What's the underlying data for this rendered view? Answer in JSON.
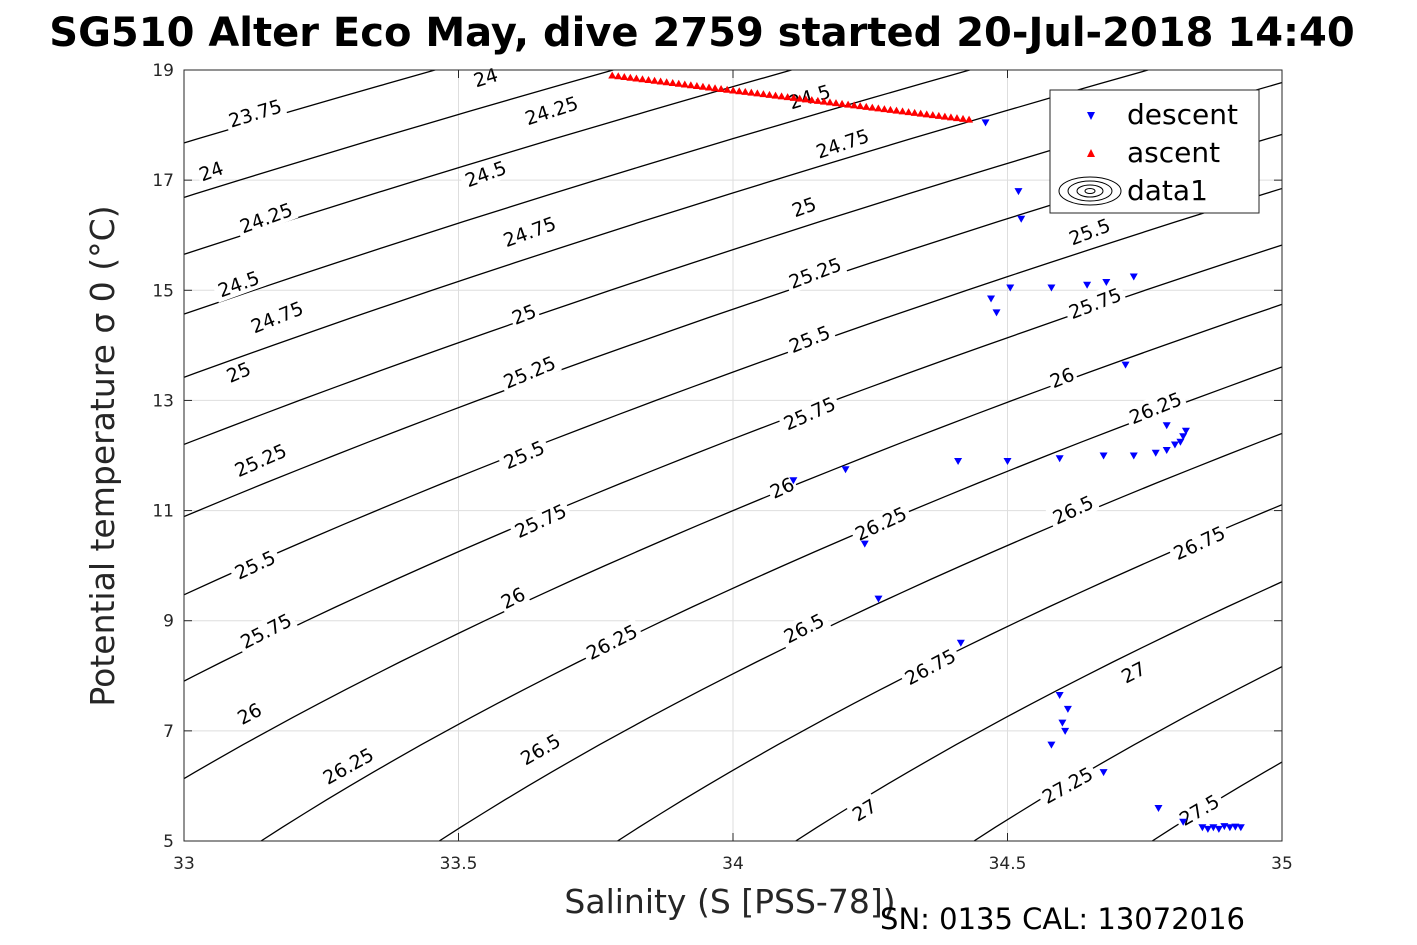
{
  "figure": {
    "title": "SG510 Alter Eco May, dive 2759 started 20-Jul-2018 14:40",
    "footer": "SN: 0135  CAL: 13072016"
  },
  "chart_data": {
    "type": "scatter",
    "title": "SG510 Alter Eco May, dive 2759 started 20-Jul-2018 14:40",
    "xlabel": "Salinity (S [PSS-78])",
    "ylabel": "Potential temperature σ 0 (°C)",
    "xlim": [
      33,
      35
    ],
    "ylim": [
      5,
      19
    ],
    "xticks": [
      33,
      33.5,
      34,
      34.5,
      35
    ],
    "yticks": [
      5,
      7,
      9,
      11,
      13,
      15,
      17,
      19
    ],
    "grid": true,
    "legend_position": "top-right",
    "legend": [
      "descent",
      "ascent",
      "data1"
    ],
    "series": [
      {
        "name": "descent",
        "marker": "triangle-down",
        "color": "#0000ff",
        "points": [
          [
            34.46,
            18.05
          ],
          [
            34.52,
            16.8
          ],
          [
            34.525,
            16.3
          ],
          [
            34.47,
            14.85
          ],
          [
            34.48,
            14.6
          ],
          [
            34.505,
            15.05
          ],
          [
            34.58,
            15.05
          ],
          [
            34.645,
            15.1
          ],
          [
            34.68,
            15.15
          ],
          [
            34.73,
            15.25
          ],
          [
            34.715,
            13.65
          ],
          [
            34.79,
            12.55
          ],
          [
            34.82,
            12.35
          ],
          [
            34.825,
            12.45
          ],
          [
            34.815,
            12.25
          ],
          [
            34.805,
            12.2
          ],
          [
            34.79,
            12.1
          ],
          [
            34.77,
            12.05
          ],
          [
            34.73,
            12.0
          ],
          [
            34.675,
            12.0
          ],
          [
            34.595,
            11.95
          ],
          [
            34.5,
            11.9
          ],
          [
            34.41,
            11.9
          ],
          [
            34.205,
            11.75
          ],
          [
            34.11,
            11.55
          ],
          [
            34.24,
            10.4
          ],
          [
            34.265,
            9.4
          ],
          [
            34.415,
            8.6
          ],
          [
            34.595,
            7.65
          ],
          [
            34.61,
            7.4
          ],
          [
            34.6,
            7.15
          ],
          [
            34.605,
            7.0
          ],
          [
            34.58,
            6.75
          ],
          [
            34.675,
            6.25
          ],
          [
            34.775,
            5.6
          ],
          [
            34.82,
            5.35
          ],
          [
            34.855,
            5.25
          ],
          [
            34.865,
            5.22
          ],
          [
            34.875,
            5.25
          ],
          [
            34.885,
            5.22
          ],
          [
            34.895,
            5.27
          ],
          [
            34.905,
            5.25
          ],
          [
            34.915,
            5.26
          ],
          [
            34.925,
            5.25
          ]
        ]
      },
      {
        "name": "ascent",
        "marker": "triangle-up",
        "color": "#ff0000",
        "from": [
          33.78,
          18.9
        ],
        "to": [
          34.43,
          18.1
        ],
        "count": 60
      },
      {
        "name": "data1",
        "type": "contour",
        "color": "#000000",
        "quantity": "sigma0",
        "levels": [
          23.75,
          24,
          24.25,
          24.5,
          24.75,
          25,
          25.25,
          25.5,
          25.75,
          26,
          26.25,
          26.5,
          26.75,
          27,
          27.25,
          27.5
        ],
        "labels": [
          {
            "text": "23.75",
            "s": 33.13,
            "t": 18.2,
            "rot": -17
          },
          {
            "text": "24",
            "s": 33.55,
            "t": 18.85,
            "rot": -17
          },
          {
            "text": "24",
            "s": 33.05,
            "t": 17.15,
            "rot": -20
          },
          {
            "text": "24.25",
            "s": 33.67,
            "t": 18.25,
            "rot": -18
          },
          {
            "text": "24.25",
            "s": 33.15,
            "t": 16.3,
            "rot": -20
          },
          {
            "text": "24.5",
            "s": 34.14,
            "t": 18.5,
            "rot": -17
          },
          {
            "text": "24.5",
            "s": 33.55,
            "t": 17.1,
            "rot": -20
          },
          {
            "text": "24.5",
            "s": 33.1,
            "t": 15.1,
            "rot": -20
          },
          {
            "text": "24.75",
            "s": 34.2,
            "t": 17.65,
            "rot": -19
          },
          {
            "text": "24.75",
            "s": 33.63,
            "t": 16.05,
            "rot": -20
          },
          {
            "text": "24.75",
            "s": 33.17,
            "t": 14.5,
            "rot": -22
          },
          {
            "text": "25",
            "s": 34.13,
            "t": 16.5,
            "rot": -20
          },
          {
            "text": "25",
            "s": 33.62,
            "t": 14.55,
            "rot": -22
          },
          {
            "text": "25",
            "s": 33.1,
            "t": 13.5,
            "rot": -23
          },
          {
            "text": "25.25",
            "s": 34.15,
            "t": 15.3,
            "rot": -21
          },
          {
            "text": "25.25",
            "s": 33.63,
            "t": 13.5,
            "rot": -23
          },
          {
            "text": "25.25",
            "s": 33.14,
            "t": 11.9,
            "rot": -24
          },
          {
            "text": "25.5",
            "s": 34.65,
            "t": 16.05,
            "rot": -21
          },
          {
            "text": "25.5",
            "s": 34.14,
            "t": 14.1,
            "rot": -22
          },
          {
            "text": "25.5",
            "s": 33.62,
            "t": 12.0,
            "rot": -24
          },
          {
            "text": "25.5",
            "s": 33.13,
            "t": 10.0,
            "rot": -25
          },
          {
            "text": "25.75",
            "s": 34.66,
            "t": 14.75,
            "rot": -21
          },
          {
            "text": "25.75",
            "s": 34.14,
            "t": 12.75,
            "rot": -24
          },
          {
            "text": "25.75",
            "s": 33.65,
            "t": 10.8,
            "rot": -25
          },
          {
            "text": "25.75",
            "s": 33.15,
            "t": 8.8,
            "rot": -27
          },
          {
            "text": "26",
            "s": 34.6,
            "t": 13.4,
            "rot": -22
          },
          {
            "text": "26",
            "s": 34.09,
            "t": 11.4,
            "rot": -25
          },
          {
            "text": "26",
            "s": 33.6,
            "t": 9.4,
            "rot": -27
          },
          {
            "text": "26",
            "s": 33.12,
            "t": 7.3,
            "rot": -28
          },
          {
            "text": "26.25",
            "s": 34.77,
            "t": 12.85,
            "rot": -22
          },
          {
            "text": "26.25",
            "s": 34.27,
            "t": 10.75,
            "rot": -25
          },
          {
            "text": "26.25",
            "s": 33.78,
            "t": 8.6,
            "rot": -27
          },
          {
            "text": "26.25",
            "s": 33.3,
            "t": 6.35,
            "rot": -29
          },
          {
            "text": "26.5",
            "s": 34.62,
            "t": 11.0,
            "rot": -25
          },
          {
            "text": "26.5",
            "s": 34.13,
            "t": 8.85,
            "rot": -27
          },
          {
            "text": "26.5",
            "s": 33.65,
            "t": 6.65,
            "rot": -30
          },
          {
            "text": "26.75",
            "s": 34.85,
            "t": 10.4,
            "rot": -25
          },
          {
            "text": "26.75",
            "s": 34.36,
            "t": 8.15,
            "rot": -28
          },
          {
            "text": "27",
            "s": 34.73,
            "t": 8.05,
            "rot": -27
          },
          {
            "text": "27",
            "s": 34.24,
            "t": 5.55,
            "rot": -31
          },
          {
            "text": "27.25",
            "s": 34.61,
            "t": 6.0,
            "rot": -29
          },
          {
            "text": "27.5",
            "s": 34.85,
            "t": 5.55,
            "rot": -30
          }
        ]
      }
    ]
  }
}
